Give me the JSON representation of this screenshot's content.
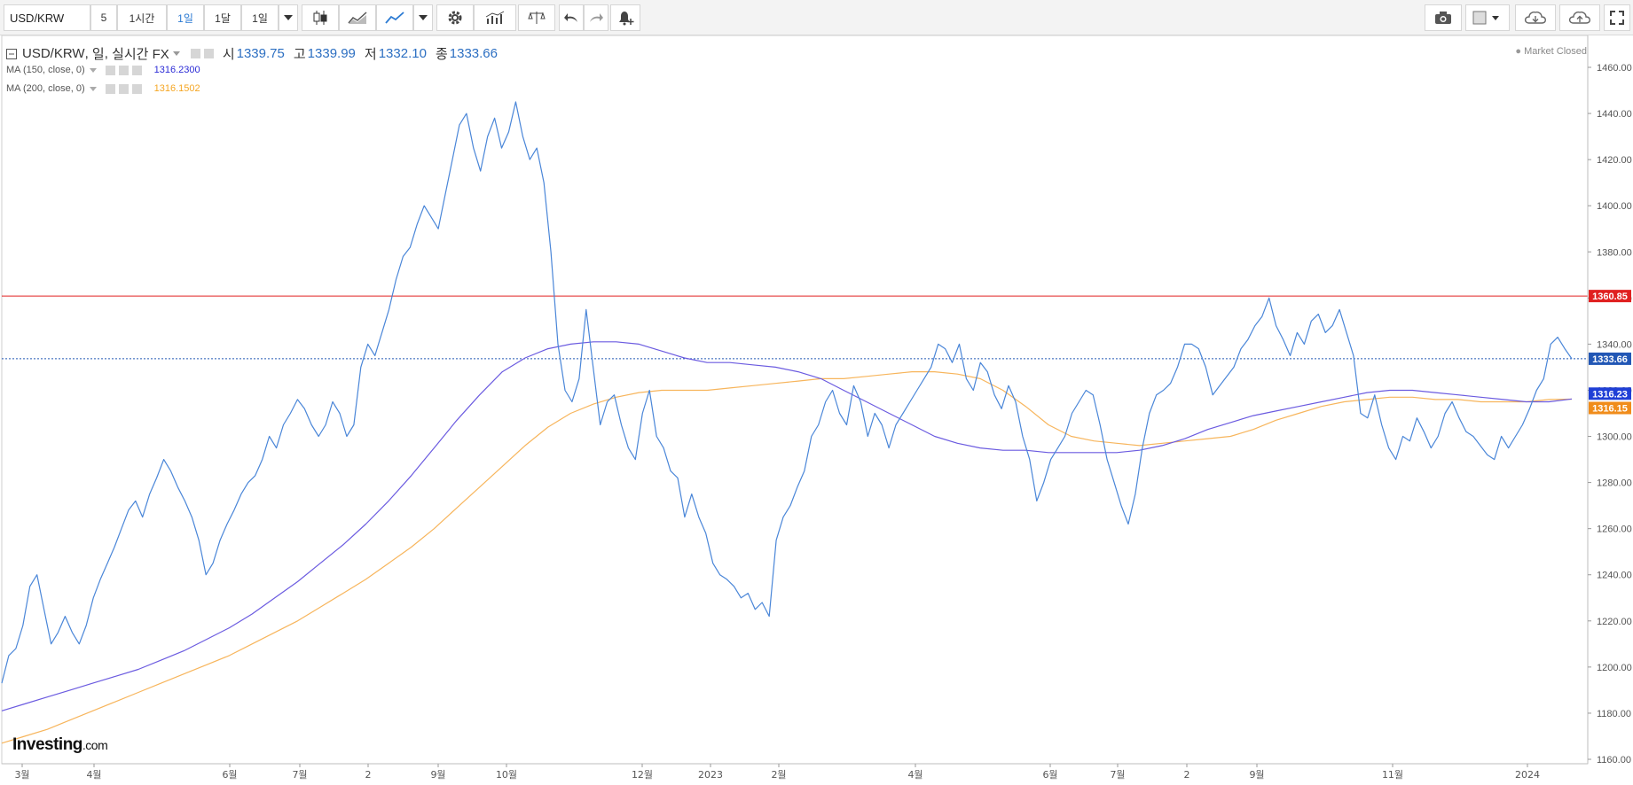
{
  "toolbar": {
    "symbol_value": "USD/KRW",
    "intervals": [
      "5",
      "1시간",
      "1일",
      "1달",
      "1일"
    ],
    "active_interval": "1일"
  },
  "legend": {
    "symbol": "USD/KRW",
    "interval": "일",
    "feed": "실시간 FX",
    "open_label": "시",
    "open": "1339.75",
    "high_label": "고",
    "high": "1339.99",
    "low_label": "저",
    "low": "1332.10",
    "close_label": "종",
    "close": "1333.66"
  },
  "indicators": [
    {
      "label": "MA (150, close, 0)",
      "value": "1316.2300",
      "color": "#2b2bd6"
    },
    {
      "label": "MA (200, close, 0)",
      "value": "1316.1502",
      "color": "#f5a623"
    }
  ],
  "market_status": "Market Closed",
  "logo": {
    "brand": "Investing",
    "suffix": ".com"
  },
  "colors": {
    "price_line": "#4a86d8",
    "ma150": "#6b5be0",
    "ma200": "#f7b55c",
    "resistance": "#e02020",
    "last_price": "#2257b5"
  },
  "chart_data": {
    "type": "line",
    "ylim": [
      1150,
      1470
    ],
    "yticks": [
      "1460.00",
      "1440.00",
      "1420.00",
      "1400.00",
      "1380.00",
      "1360.00",
      "1340.00",
      "1320.00",
      "1300.00",
      "1280.00",
      "1260.00",
      "1240.00",
      "1220.00",
      "1200.00",
      "1180.00",
      "1160.00"
    ],
    "xticks": [
      "3월",
      "4월",
      "6월",
      "7월",
      "2",
      "9월",
      "10월",
      "12월",
      "2023",
      "2월",
      "4월",
      "6월",
      "7월",
      "2",
      "9월",
      "11월",
      "2024"
    ],
    "price_series": {
      "name": "USD/KRW",
      "values": [
        1193,
        1205,
        1208,
        1218,
        1235,
        1240,
        1225,
        1210,
        1215,
        1222,
        1215,
        1210,
        1218,
        1230,
        1238,
        1245,
        1252,
        1260,
        1268,
        1272,
        1265,
        1275,
        1282,
        1290,
        1285,
        1278,
        1272,
        1265,
        1255,
        1240,
        1245,
        1255,
        1262,
        1268,
        1275,
        1280,
        1283,
        1290,
        1300,
        1295,
        1305,
        1310,
        1316,
        1312,
        1305,
        1300,
        1305,
        1315,
        1310,
        1300,
        1305,
        1330,
        1340,
        1335,
        1345,
        1355,
        1368,
        1378,
        1382,
        1392,
        1400,
        1395,
        1390,
        1405,
        1420,
        1435,
        1440,
        1425,
        1415,
        1430,
        1438,
        1425,
        1432,
        1445,
        1430,
        1420,
        1425,
        1410,
        1380,
        1340,
        1320,
        1315,
        1325,
        1355,
        1330,
        1305,
        1315,
        1318,
        1305,
        1295,
        1290,
        1310,
        1320,
        1300,
        1295,
        1285,
        1282,
        1265,
        1275,
        1265,
        1258,
        1245,
        1240,
        1238,
        1235,
        1230,
        1232,
        1225,
        1228,
        1222,
        1255,
        1265,
        1270,
        1278,
        1285,
        1300,
        1305,
        1315,
        1320,
        1310,
        1305,
        1322,
        1315,
        1300,
        1310,
        1305,
        1295,
        1305,
        1310,
        1315,
        1320,
        1325,
        1330,
        1340,
        1338,
        1332,
        1340,
        1325,
        1320,
        1332,
        1328,
        1318,
        1312,
        1322,
        1315,
        1300,
        1290,
        1272,
        1280,
        1290,
        1295,
        1300,
        1310,
        1315,
        1320,
        1318,
        1305,
        1290,
        1280,
        1270,
        1262,
        1275,
        1295,
        1310,
        1318,
        1320,
        1323,
        1330,
        1340,
        1340,
        1338,
        1330,
        1318,
        1322,
        1326,
        1330,
        1338,
        1342,
        1348,
        1352,
        1360,
        1348,
        1342,
        1335,
        1345,
        1340,
        1350,
        1353,
        1345,
        1348,
        1355,
        1345,
        1335,
        1310,
        1308,
        1318,
        1305,
        1295,
        1290,
        1300,
        1298,
        1308,
        1302,
        1295,
        1300,
        1310,
        1315,
        1308,
        1302,
        1300,
        1296,
        1292,
        1290,
        1300,
        1295,
        1300,
        1305,
        1312,
        1320,
        1325,
        1340,
        1343,
        1338,
        1333.66
      ]
    },
    "ma150_series": {
      "name": "MA (150, close, 0)",
      "values": [
        1181,
        1184,
        1187,
        1190,
        1193,
        1196,
        1199,
        1203,
        1207,
        1212,
        1217,
        1223,
        1230,
        1237,
        1245,
        1253,
        1262,
        1272,
        1283,
        1295,
        1307,
        1318,
        1328,
        1334,
        1338,
        1340,
        1341,
        1341,
        1340,
        1337,
        1334,
        1332,
        1332,
        1331,
        1330,
        1328,
        1325,
        1320,
        1315,
        1310,
        1305,
        1300,
        1297,
        1295,
        1294,
        1294,
        1293,
        1293,
        1293,
        1293,
        1294,
        1296,
        1299,
        1303,
        1306,
        1309,
        1311,
        1313,
        1315,
        1317,
        1319,
        1320,
        1320,
        1319,
        1318,
        1317,
        1316,
        1315,
        1315,
        1316.23
      ]
    },
    "ma200_series": {
      "name": "MA (200, close, 0)",
      "values": [
        1167,
        1170,
        1173,
        1177,
        1181,
        1185,
        1189,
        1193,
        1197,
        1201,
        1205,
        1210,
        1215,
        1220,
        1226,
        1232,
        1238,
        1245,
        1252,
        1260,
        1269,
        1278,
        1287,
        1296,
        1304,
        1310,
        1314,
        1317,
        1319,
        1320,
        1320,
        1320,
        1321,
        1322,
        1323,
        1324,
        1325,
        1325,
        1326,
        1327,
        1328,
        1328,
        1327,
        1325,
        1320,
        1313,
        1305,
        1300,
        1298,
        1297,
        1296,
        1297,
        1298,
        1299,
        1300,
        1303,
        1307,
        1310,
        1313,
        1315,
        1316,
        1317,
        1317,
        1316,
        1316,
        1315,
        1315,
        1315,
        1316,
        1316.15
      ]
    },
    "hlines": [
      {
        "value": 1360.85,
        "label": "1360.85",
        "color": "#e02020",
        "style": "solid"
      },
      {
        "value": 1333.66,
        "label": "1333.66",
        "color": "#2257b5",
        "style": "dotted"
      }
    ],
    "axis_badges": [
      {
        "value": 1316.23,
        "label": "1316.23",
        "color": "#1f3fd6"
      },
      {
        "value": 1316.15,
        "label": "1316.15",
        "color": "#f08c1a"
      }
    ]
  }
}
